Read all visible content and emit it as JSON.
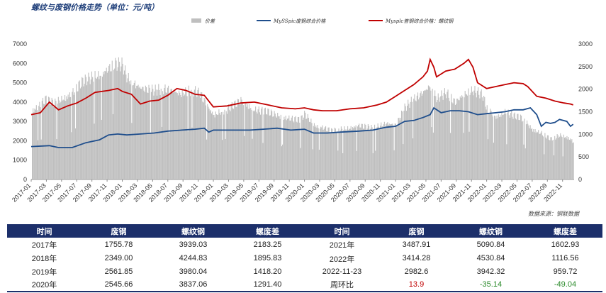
{
  "title": "螺纹与废钢价格走势（单位：元/吨）",
  "source_note": "数据来源：钢联数据",
  "chart_data": {
    "type": "area+line",
    "title": "螺纹与废钢价格走势（单位：元/吨）",
    "legend": [
      "价差",
      "MySSpic废钢综合价格",
      "Mysplc普钢综合价格：螺纹钢"
    ],
    "legend_position": "top",
    "colors": {
      "spread": "#bfbfbf",
      "scrap": "#1f4e8c",
      "rebar": "#c00000"
    },
    "y_left": {
      "lim": [
        0,
        7000
      ],
      "ticks": [
        "0",
        "1000",
        "2000",
        "3000",
        "4000",
        "5000",
        "6000",
        "7000"
      ]
    },
    "y_right": {
      "lim": [
        0,
        3000
      ],
      "ticks": [
        "0",
        "500",
        "1000",
        "1500",
        "2000",
        "2500",
        "3000"
      ]
    },
    "x_ticks": [
      "2017-01",
      "2017-03",
      "2017-05",
      "2017-07",
      "2017-09",
      "2017-11",
      "2018-01",
      "2018-03",
      "2018-05",
      "2018-07",
      "2018-09",
      "2018-11",
      "2019-01",
      "2019-03",
      "2019-05",
      "2019-07",
      "2019-09",
      "2019-11",
      "2020-01",
      "2020-03",
      "2020-05",
      "2020-07",
      "2020-09",
      "2020-11",
      "2021-01",
      "2021-03",
      "2021-05",
      "2021-07",
      "2021-09",
      "2021-11",
      "2022-01",
      "2022-03",
      "2022-05",
      "2022-07",
      "2022-09",
      "2022-11"
    ],
    "series": [
      {
        "name": "价差",
        "axis": "right",
        "kind": "area",
        "x": [
          2017.0,
          2017.08,
          2017.15,
          2017.25,
          2017.4,
          2017.55,
          2017.75,
          2017.9,
          2018.0,
          2018.05,
          2018.2,
          2018.35,
          2018.5,
          2018.65,
          2018.75,
          2018.85,
          2018.95,
          2019.0,
          2019.15,
          2019.3,
          2019.45,
          2019.6,
          2019.75,
          2019.85,
          2019.95,
          2020.0,
          2020.1,
          2020.2,
          2020.3,
          2020.45,
          2020.6,
          2020.75,
          2020.9,
          2021.0,
          2021.1,
          2021.2,
          2021.3,
          2021.38,
          2021.45,
          2021.55,
          2021.65,
          2021.75,
          2021.85,
          2021.95,
          2022.0,
          2022.1,
          2022.2,
          2022.3,
          2022.4,
          2022.5,
          2022.6,
          2022.7,
          2022.8,
          2022.9,
          2022.95
        ],
        "values": [
          1650,
          1750,
          1900,
          1800,
          2000,
          2300,
          2500,
          2750,
          2700,
          2400,
          2200,
          2100,
          2150,
          2050,
          2100,
          2050,
          1700,
          1550,
          1650,
          1900,
          1650,
          1600,
          1500,
          1450,
          1400,
          1550,
          1300,
          1250,
          1150,
          1200,
          1300,
          1200,
          1350,
          1300,
          1700,
          1900,
          2100,
          2250,
          1900,
          2050,
          1850,
          2050,
          2100,
          2000,
          1700,
          1500,
          1600,
          1500,
          1450,
          1200,
          1100,
          950,
          1050,
          1000,
          900
        ]
      },
      {
        "name": "MySSpic废钢综合价格",
        "axis": "left",
        "kind": "line",
        "x": [
          2017.0,
          2017.2,
          2017.3,
          2017.45,
          2017.6,
          2017.75,
          2017.85,
          2017.95,
          2018.05,
          2018.2,
          2018.35,
          2018.5,
          2018.65,
          2018.8,
          2018.9,
          2018.95,
          2019.0,
          2019.2,
          2019.4,
          2019.55,
          2019.7,
          2019.85,
          2020.0,
          2020.1,
          2020.25,
          2020.4,
          2020.6,
          2020.75,
          2020.9,
          2021.0,
          2021.1,
          2021.2,
          2021.3,
          2021.38,
          2021.42,
          2021.5,
          2021.6,
          2021.7,
          2021.8,
          2021.9,
          2022.0,
          2022.1,
          2022.2,
          2022.3,
          2022.4,
          2022.48,
          2022.55,
          2022.6,
          2022.65,
          2022.7,
          2022.75,
          2022.8,
          2022.88,
          2022.92,
          2022.95
        ],
        "values": [
          1700,
          1750,
          1650,
          1650,
          1900,
          2050,
          2300,
          2350,
          2300,
          2350,
          2400,
          2500,
          2550,
          2600,
          2650,
          2450,
          2550,
          2550,
          2550,
          2600,
          2650,
          2550,
          2600,
          2400,
          2400,
          2450,
          2500,
          2550,
          2700,
          2750,
          3000,
          3050,
          3200,
          3350,
          3700,
          3450,
          3550,
          3550,
          3500,
          3350,
          3400,
          3450,
          3500,
          3600,
          3600,
          3700,
          3350,
          2750,
          2950,
          2900,
          2950,
          3100,
          3000,
          2750,
          2850
        ]
      },
      {
        "name": "Mysplc普钢综合价格：螺纹钢",
        "axis": "left",
        "kind": "line",
        "x": [
          2017.0,
          2017.1,
          2017.2,
          2017.3,
          2017.4,
          2017.5,
          2017.6,
          2017.7,
          2017.85,
          2017.95,
          2018.0,
          2018.1,
          2018.2,
          2018.3,
          2018.4,
          2018.5,
          2018.6,
          2018.7,
          2018.8,
          2018.9,
          2019.0,
          2019.15,
          2019.3,
          2019.45,
          2019.6,
          2019.75,
          2019.9,
          2020.0,
          2020.1,
          2020.2,
          2020.35,
          2020.5,
          2020.65,
          2020.8,
          2020.9,
          2021.0,
          2021.1,
          2021.2,
          2021.3,
          2021.35,
          2021.38,
          2021.42,
          2021.45,
          2021.55,
          2021.65,
          2021.75,
          2021.8,
          2021.85,
          2021.9,
          2022.0,
          2022.1,
          2022.2,
          2022.3,
          2022.4,
          2022.45,
          2022.55,
          2022.65,
          2022.75,
          2022.85,
          2022.92,
          2022.95
        ],
        "values": [
          3350,
          3450,
          4000,
          3600,
          3800,
          3950,
          4200,
          4500,
          4600,
          4700,
          4550,
          4400,
          3900,
          4050,
          4100,
          4350,
          4700,
          4600,
          4400,
          4350,
          3750,
          3800,
          3950,
          4000,
          3850,
          3700,
          3650,
          3700,
          3600,
          3550,
          3550,
          3650,
          3700,
          3850,
          4000,
          4300,
          4600,
          4900,
          5300,
          5600,
          6200,
          5800,
          5300,
          5600,
          5700,
          6000,
          6200,
          5800,
          5000,
          4700,
          4800,
          4900,
          5000,
          4950,
          4800,
          4300,
          4200,
          4050,
          3950,
          3900,
          3850
        ]
      }
    ]
  },
  "table": {
    "headers": [
      "时间",
      "废钢",
      "螺纹钢",
      "螺废差",
      "时间",
      "废钢",
      "螺纹钢",
      "螺废差"
    ],
    "rows": [
      [
        "2017年",
        "1755.78",
        "3939.03",
        "2183.25",
        "2021年",
        "3487.91",
        "5090.84",
        "1602.93"
      ],
      [
        "2018年",
        "2349.00",
        "4244.83",
        "1895.83",
        "2022年",
        "3414.28",
        "4530.84",
        "1116.56"
      ],
      [
        "2019年",
        "2561.85",
        "3980.04",
        "1418.20",
        "2022-11-23",
        "2982.6",
        "3942.32",
        "959.72"
      ],
      [
        "2020年",
        "2545.66",
        "3837.06",
        "1291.40",
        "周环比",
        "13.9",
        "-35.14",
        "-49.04"
      ]
    ]
  }
}
